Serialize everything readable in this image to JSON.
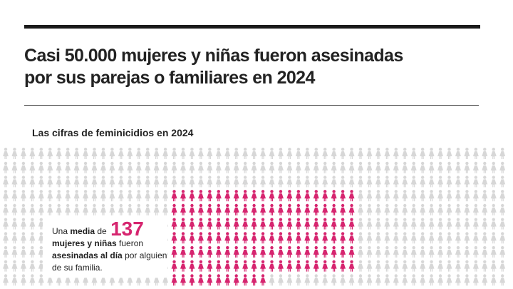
{
  "header": {
    "title_line1": "Casi 50.000 mujeres y niñas fueron asesinadas",
    "title_line2": "por sus parejas o familiares en 2024"
  },
  "section": {
    "subtitle": "Las cifras de feminicidios en 2024"
  },
  "callout": {
    "t1": "Una ",
    "t2": "media",
    "t3": " de ",
    "number": "137",
    "t4": "mujeres y niñas",
    "t5": " fueron ",
    "t6": "asesinadas al día",
    "t7": " por alguien de su familia."
  },
  "pictogram": {
    "highlight_count": 137,
    "colors": {
      "highlight": "#d6256f",
      "background": "#d7d7d7"
    }
  }
}
